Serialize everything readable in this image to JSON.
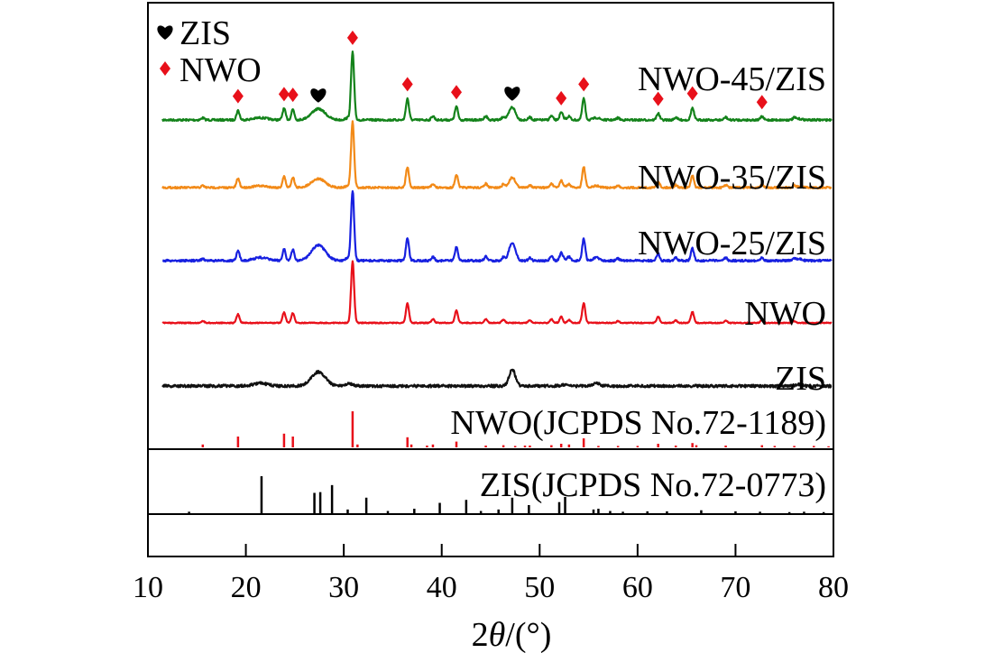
{
  "chart_data": {
    "type": "line",
    "xlabel_parts": [
      "2",
      "θ",
      "/(°)"
    ],
    "xlim": [
      10,
      80
    ],
    "x_ticks": [
      "10",
      "20",
      "30",
      "40",
      "50",
      "60",
      "70",
      "80"
    ],
    "grid": false,
    "legend": {
      "position": "top-left",
      "entries": [
        {
          "label": "ZIS",
          "marker": "heart",
          "color": "#000000"
        },
        {
          "label": "NWO",
          "marker": "diamond",
          "color": "#e8101a"
        }
      ]
    },
    "series": [
      {
        "name": "NWO-45/ZIS",
        "color": "#13821a",
        "markers": [
          {
            "type": "diamond",
            "x": 19.2
          },
          {
            "type": "diamond",
            "x": 23.9
          },
          {
            "type": "diamond",
            "x": 24.8
          },
          {
            "type": "heart",
            "x": 27.4
          },
          {
            "type": "diamond",
            "x": 30.9
          },
          {
            "type": "diamond",
            "x": 36.5
          },
          {
            "type": "diamond",
            "x": 41.5
          },
          {
            "type": "heart",
            "x": 47.2
          },
          {
            "type": "diamond",
            "x": 52.2
          },
          {
            "type": "diamond",
            "x": 54.5
          },
          {
            "type": "diamond",
            "x": 62.1
          },
          {
            "type": "diamond",
            "x": 65.6
          },
          {
            "type": "diamond",
            "x": 72.7
          }
        ]
      },
      {
        "name": "NWO-35/ZIS",
        "color": "#f28a18"
      },
      {
        "name": "NWO-25/ZIS",
        "color": "#1720e0"
      },
      {
        "name": "NWO",
        "color": "#e8101a"
      },
      {
        "name": "ZIS",
        "color": "#111111"
      }
    ],
    "peaks": {
      "NWO": [
        [
          15.6,
          0.03
        ],
        [
          19.2,
          0.14
        ],
        [
          23.9,
          0.17
        ],
        [
          24.8,
          0.16
        ],
        [
          30.9,
          1.0
        ],
        [
          36.5,
          0.32
        ],
        [
          39.1,
          0.06
        ],
        [
          41.5,
          0.2
        ],
        [
          44.5,
          0.06
        ],
        [
          46.3,
          0.05
        ],
        [
          49.0,
          0.04
        ],
        [
          51.2,
          0.06
        ],
        [
          52.2,
          0.1
        ],
        [
          53.0,
          0.05
        ],
        [
          54.5,
          0.32
        ],
        [
          58.0,
          0.03
        ],
        [
          62.1,
          0.1
        ],
        [
          63.9,
          0.04
        ],
        [
          65.6,
          0.18
        ],
        [
          69.0,
          0.04
        ],
        [
          72.7,
          0.05
        ],
        [
          76.0,
          0.03
        ]
      ],
      "ZIS": [
        [
          21.5,
          0.06
        ],
        [
          27.4,
          0.3
        ],
        [
          30.5,
          0.06
        ],
        [
          47.2,
          0.35
        ],
        [
          52.5,
          0.03
        ],
        [
          55.8,
          0.06
        ],
        [
          76.5,
          0.03
        ]
      ]
    },
    "reference_patterns": [
      {
        "name": "NWO(JCPDS No.72-1189)",
        "color": "#e8101a",
        "sticks": [
          [
            15.6,
            0.08
          ],
          [
            19.2,
            0.3
          ],
          [
            23.9,
            0.38
          ],
          [
            24.8,
            0.3
          ],
          [
            30.9,
            1.0
          ],
          [
            31.4,
            0.08
          ],
          [
            36.5,
            0.28
          ],
          [
            36.9,
            0.08
          ],
          [
            38.5,
            0.05
          ],
          [
            39.1,
            0.08
          ],
          [
            41.5,
            0.16
          ],
          [
            44.5,
            0.05
          ],
          [
            46.3,
            0.06
          ],
          [
            47.5,
            0.04
          ],
          [
            48.5,
            0.05
          ],
          [
            49.0,
            0.05
          ],
          [
            51.2,
            0.06
          ],
          [
            52.2,
            0.1
          ],
          [
            53.0,
            0.08
          ],
          [
            54.5,
            0.25
          ],
          [
            56.0,
            0.04
          ],
          [
            58.0,
            0.04
          ],
          [
            60.0,
            0.04
          ],
          [
            62.1,
            0.1
          ],
          [
            63.9,
            0.05
          ],
          [
            65.6,
            0.12
          ],
          [
            66.0,
            0.06
          ],
          [
            69.0,
            0.05
          ],
          [
            72.7,
            0.06
          ],
          [
            74.0,
            0.04
          ],
          [
            76.0,
            0.04
          ],
          [
            78.0,
            0.04
          ],
          [
            79.5,
            0.03
          ]
        ]
      },
      {
        "name": "ZIS(JCPDS No.72-0773)",
        "color": "#000000",
        "sticks": [
          [
            14.2,
            0.04
          ],
          [
            21.6,
            1.0
          ],
          [
            27.0,
            0.55
          ],
          [
            27.6,
            0.57
          ],
          [
            28.8,
            0.76
          ],
          [
            30.4,
            0.1
          ],
          [
            32.3,
            0.42
          ],
          [
            34.5,
            0.06
          ],
          [
            37.2,
            0.12
          ],
          [
            39.8,
            0.28
          ],
          [
            42.5,
            0.36
          ],
          [
            44.0,
            0.06
          ],
          [
            45.8,
            0.1
          ],
          [
            47.2,
            0.42
          ],
          [
            48.9,
            0.22
          ],
          [
            52.0,
            0.3
          ],
          [
            52.6,
            0.44
          ],
          [
            55.5,
            0.1
          ],
          [
            56.0,
            0.12
          ],
          [
            57.2,
            0.06
          ],
          [
            58.5,
            0.04
          ],
          [
            61.0,
            0.05
          ],
          [
            63.0,
            0.05
          ],
          [
            66.5,
            0.08
          ],
          [
            70.0,
            0.05
          ],
          [
            72.5,
            0.04
          ],
          [
            75.5,
            0.03
          ],
          [
            77.0,
            0.04
          ],
          [
            79.0,
            0.03
          ]
        ]
      }
    ]
  }
}
